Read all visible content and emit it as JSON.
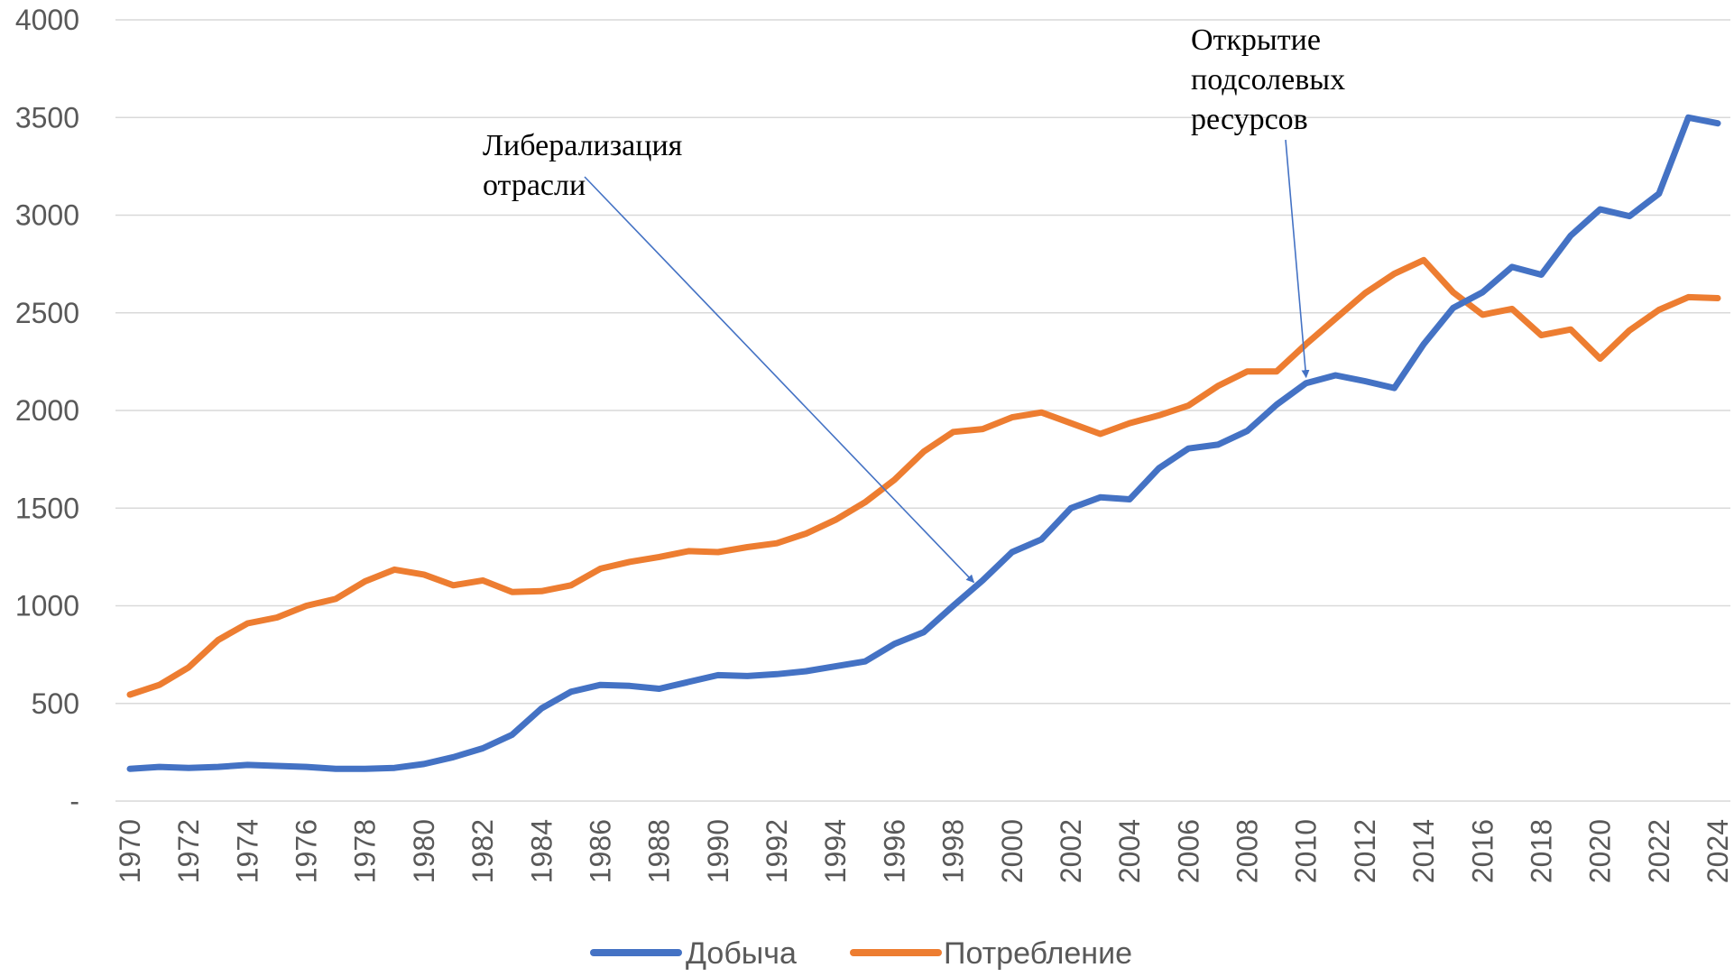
{
  "chart_data": {
    "type": "line",
    "title": "",
    "xlabel": "",
    "ylabel": "",
    "ylim": [
      0,
      4000
    ],
    "yticks": [
      0,
      500,
      1000,
      1500,
      2000,
      2500,
      3000,
      3500,
      4000
    ],
    "ytick_labels": [
      "-",
      "500",
      "1000",
      "1500",
      "2000",
      "2500",
      "3000",
      "3500",
      "4000"
    ],
    "x": [
      1970,
      1971,
      1972,
      1973,
      1974,
      1975,
      1976,
      1977,
      1978,
      1979,
      1980,
      1981,
      1982,
      1983,
      1984,
      1985,
      1986,
      1987,
      1988,
      1989,
      1990,
      1991,
      1992,
      1993,
      1994,
      1995,
      1996,
      1997,
      1998,
      1999,
      2000,
      2001,
      2002,
      2003,
      2004,
      2005,
      2006,
      2007,
      2008,
      2009,
      2010,
      2011,
      2012,
      2013,
      2014,
      2015,
      2016,
      2017,
      2018,
      2019,
      2020,
      2021,
      2022,
      2023,
      2024
    ],
    "xtick_labels": [
      "1970",
      "1972",
      "1974",
      "1976",
      "1978",
      "1980",
      "1982",
      "1984",
      "1986",
      "1988",
      "1990",
      "1992",
      "1994",
      "1996",
      "1998",
      "2000",
      "2002",
      "2004",
      "2006",
      "2008",
      "2010",
      "2012",
      "2014",
      "2016",
      "2018",
      "2020",
      "2022",
      "2024"
    ],
    "grid": true,
    "legend_position": "bottom",
    "series": [
      {
        "name": "Добыча",
        "color": "#4472c4",
        "values": [
          165,
          175,
          170,
          175,
          185,
          180,
          175,
          165,
          165,
          170,
          190,
          225,
          270,
          340,
          475,
          560,
          595,
          590,
          575,
          610,
          645,
          640,
          650,
          665,
          690,
          715,
          805,
          865,
          1000,
          1130,
          1275,
          1340,
          1500,
          1555,
          1545,
          1705,
          1805,
          1825,
          1895,
          2030,
          2140,
          2180,
          2150,
          2115,
          2340,
          2525,
          2605,
          2735,
          2695,
          2895,
          3030,
          2995,
          3110,
          3500,
          3470
        ]
      },
      {
        "name": "Потребление",
        "color": "#ed7d31",
        "values": [
          545,
          595,
          685,
          825,
          910,
          940,
          1000,
          1035,
          1125,
          1185,
          1160,
          1105,
          1130,
          1070,
          1075,
          1105,
          1190,
          1225,
          1250,
          1280,
          1275,
          1300,
          1320,
          1370,
          1440,
          1530,
          1645,
          1790,
          1890,
          1905,
          1965,
          1990,
          1935,
          1880,
          1935,
          1975,
          2025,
          2125,
          2200,
          2200,
          2340,
          2470,
          2600,
          2700,
          2770,
          2605,
          2490,
          2520,
          2385,
          2415,
          2265,
          2410,
          2515,
          2580,
          2575
        ]
      }
    ],
    "annotations": [
      {
        "lines": [
          "Либерализация",
          "отрасли"
        ],
        "target_year": 1998.7,
        "target_value": 1120
      },
      {
        "lines": [
          "Открытие",
          " подсолевых",
          "ресурсов"
        ],
        "target_year": 2010,
        "target_value": 2170
      }
    ]
  }
}
